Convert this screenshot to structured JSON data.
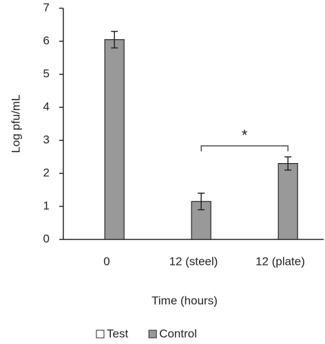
{
  "chart_data": {
    "type": "bar",
    "x_label": "Time (hours)",
    "y_label": "Log pfu/mL",
    "categories": [
      "0",
      "12 (steel)",
      "12 (plate)"
    ],
    "series": [
      {
        "name": "Test",
        "color": "#ffffff",
        "values": [
          null,
          null,
          null
        ],
        "errors": [
          null,
          null,
          null
        ]
      },
      {
        "name": "Control",
        "color": "#999999",
        "values": [
          6.05,
          1.15,
          2.3
        ],
        "errors": [
          0.25,
          0.25,
          0.2
        ]
      }
    ],
    "ylim": [
      0,
      7
    ],
    "yticks": [
      0,
      1,
      2,
      3,
      4,
      5,
      6,
      7
    ],
    "annotation": "*",
    "legend": "bottom"
  }
}
